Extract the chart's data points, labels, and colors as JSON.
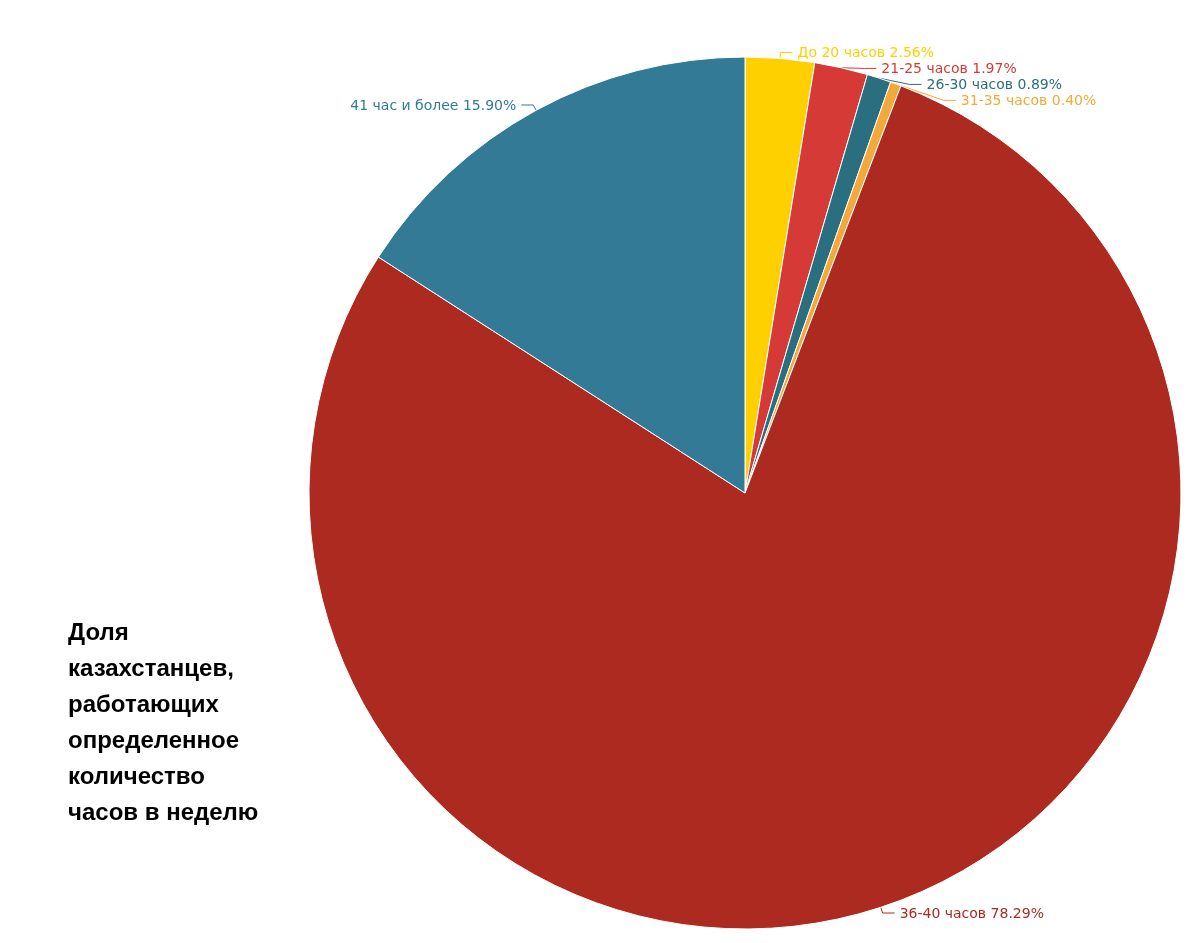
{
  "chart_data": {
    "type": "pie",
    "title": "Доля казахстанцев, работающих определенное количество часов в неделю",
    "categories": [
      "До 20 часов",
      "21-25 часов",
      "26-30 часов",
      "31-35 часов",
      "36-40 часов",
      "41 час и более"
    ],
    "values": [
      2.56,
      1.97,
      0.89,
      0.4,
      78.29,
      15.9
    ],
    "value_labels": [
      "2.56%",
      "1.97%",
      "0.89%",
      "0.40%",
      "78.29%",
      "15.90%"
    ],
    "colors": [
      "#ffd000",
      "#d63a36",
      "#2a6f80",
      "#f2a93b",
      "#ad2a20",
      "#337a96"
    ],
    "legend": false
  }
}
